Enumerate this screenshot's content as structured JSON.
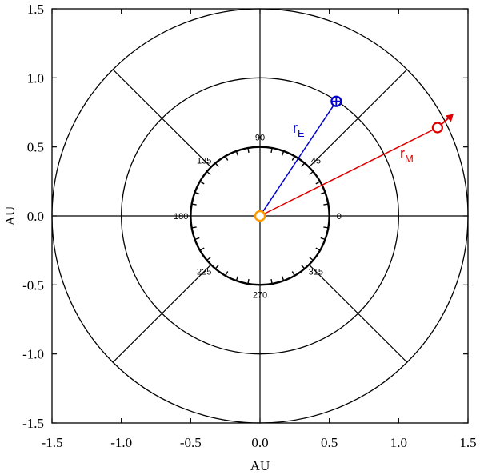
{
  "chart_data": {
    "type": "diagram",
    "xlabel": "AU",
    "ylabel": "AU",
    "xlim": [
      -1.5,
      1.5
    ],
    "ylim": [
      -1.5,
      1.5
    ],
    "x_ticks": [
      "-1.5",
      "-1.0",
      "-0.5",
      "0.0",
      "0.5",
      "1.0",
      "1.5"
    ],
    "y_ticks": [
      "-1.5",
      "-1.0",
      "-0.5",
      "0.0",
      "0.5",
      "1.0",
      "1.5"
    ],
    "x_tick_values": [
      -1.5,
      -1.0,
      -0.5,
      0.0,
      0.5,
      1.0,
      1.5
    ],
    "y_tick_values": [
      -1.5,
      -1.0,
      -0.5,
      0.0,
      0.5,
      1.0,
      1.5
    ],
    "circle_radii_au": [
      0.5,
      1.0,
      1.5
    ],
    "radial_line_angles_deg": [
      0,
      45,
      90,
      135,
      180,
      225,
      270,
      315
    ],
    "angle_labels": [
      {
        "angle": 0,
        "text": "0"
      },
      {
        "angle": 45,
        "text": "45"
      },
      {
        "angle": 90,
        "text": "90"
      },
      {
        "angle": 135,
        "text": "135"
      },
      {
        "angle": 180,
        "text": "180"
      },
      {
        "angle": 225,
        "text": "225"
      },
      {
        "angle": 270,
        "text": "270"
      },
      {
        "angle": 315,
        "text": "315"
      }
    ],
    "earth": {
      "x": 0.55,
      "y": 0.83,
      "label_main": "r",
      "label_sub": "E",
      "color": "#0000cc"
    },
    "mars": {
      "x": 1.28,
      "y": 0.64,
      "label_main": "r",
      "label_sub": "M",
      "color": "#dd0000"
    },
    "sun": {
      "x": 0.0,
      "y": 0.0,
      "color": "#ff9900"
    }
  }
}
